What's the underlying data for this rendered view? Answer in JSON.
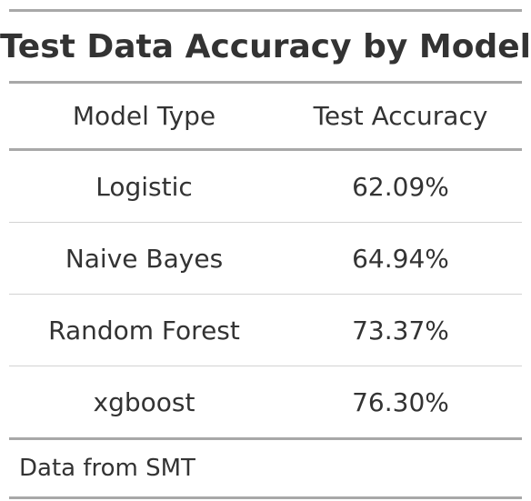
{
  "table": {
    "title": "Test Data Accuracy by Model",
    "columns": [
      "Model Type",
      "Test Accuracy"
    ],
    "rows": [
      {
        "model": "Logistic",
        "accuracy": "62.09%"
      },
      {
        "model": "Naive Bayes",
        "accuracy": "64.94%"
      },
      {
        "model": "Random Forest",
        "accuracy": "73.37%"
      },
      {
        "model": "xgboost",
        "accuracy": "76.30%"
      }
    ],
    "source_note": "Data from SMT"
  }
}
